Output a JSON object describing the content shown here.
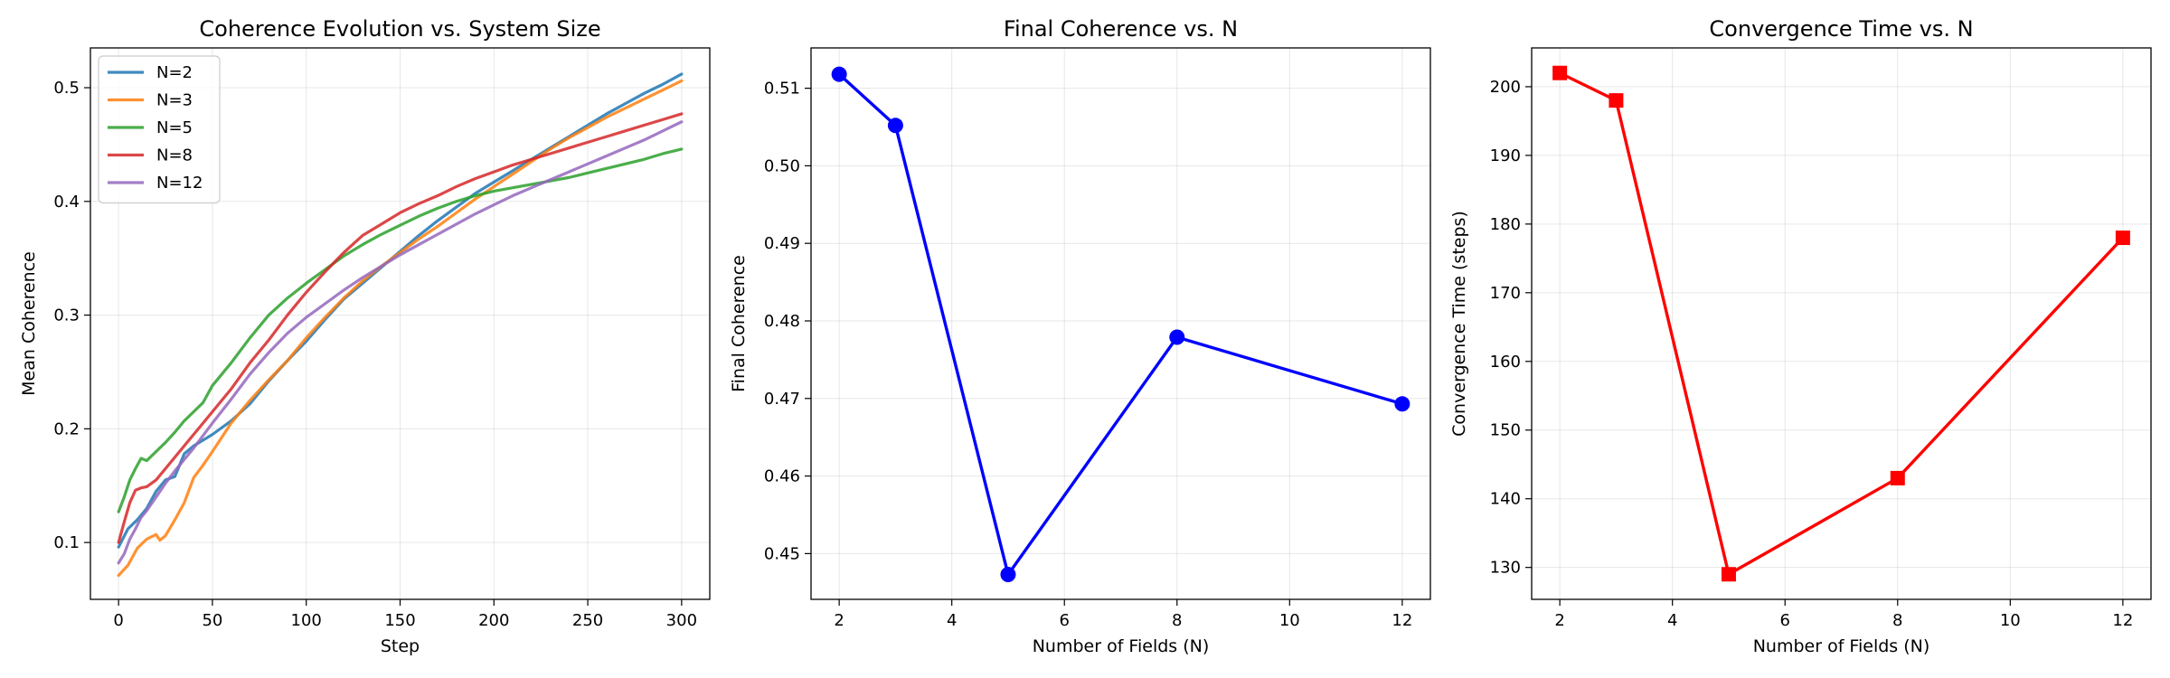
{
  "chart_data": [
    {
      "type": "line",
      "title": "Coherence Evolution vs. System Size",
      "xlabel": "Step",
      "ylabel": "Mean Coherence",
      "xlim": [
        -15,
        315
      ],
      "ylim": [
        0.05,
        0.535
      ],
      "xticks": [
        0,
        50,
        100,
        150,
        200,
        250,
        300
      ],
      "yticks": [
        0.1,
        0.2,
        0.3,
        0.4,
        0.5
      ],
      "grid": true,
      "legend": "upper left",
      "series": [
        {
          "name": "N=2",
          "color": "#1f77b4",
          "x": [
            0,
            5,
            10,
            15,
            20,
            25,
            30,
            35,
            40,
            50,
            60,
            70,
            80,
            90,
            100,
            110,
            120,
            130,
            140,
            150,
            160,
            170,
            180,
            190,
            200,
            210,
            220,
            230,
            240,
            250,
            260,
            270,
            280,
            290,
            300
          ],
          "y": [
            0.096,
            0.112,
            0.12,
            0.13,
            0.145,
            0.155,
            0.158,
            0.178,
            0.185,
            0.195,
            0.207,
            0.222,
            0.242,
            0.26,
            0.277,
            0.296,
            0.314,
            0.328,
            0.342,
            0.356,
            0.37,
            0.383,
            0.395,
            0.407,
            0.417,
            0.427,
            0.437,
            0.447,
            0.457,
            0.467,
            0.477,
            0.486,
            0.495,
            0.503,
            0.512
          ]
        },
        {
          "name": "N=3",
          "color": "#ff7f0e",
          "x": [
            0,
            5,
            10,
            15,
            20,
            22,
            25,
            30,
            35,
            40,
            45,
            50,
            60,
            70,
            80,
            90,
            100,
            110,
            120,
            130,
            140,
            150,
            160,
            170,
            180,
            190,
            200,
            210,
            220,
            230,
            240,
            250,
            260,
            270,
            280,
            290,
            300
          ],
          "y": [
            0.071,
            0.08,
            0.095,
            0.103,
            0.107,
            0.102,
            0.106,
            0.12,
            0.135,
            0.157,
            0.168,
            0.18,
            0.205,
            0.225,
            0.243,
            0.26,
            0.28,
            0.298,
            0.315,
            0.33,
            0.343,
            0.355,
            0.367,
            0.378,
            0.39,
            0.402,
            0.413,
            0.424,
            0.435,
            0.446,
            0.456,
            0.465,
            0.474,
            0.482,
            0.49,
            0.498,
            0.506
          ]
        },
        {
          "name": "N=5",
          "color": "#2ca02c",
          "x": [
            0,
            3,
            6,
            9,
            12,
            15,
            20,
            25,
            30,
            35,
            40,
            45,
            50,
            60,
            70,
            80,
            90,
            100,
            110,
            120,
            130,
            140,
            150,
            160,
            170,
            180,
            190,
            200,
            210,
            220,
            230,
            240,
            250,
            260,
            270,
            280,
            290,
            300
          ],
          "y": [
            0.127,
            0.14,
            0.155,
            0.165,
            0.174,
            0.172,
            0.18,
            0.188,
            0.197,
            0.207,
            0.215,
            0.223,
            0.238,
            0.258,
            0.28,
            0.3,
            0.315,
            0.328,
            0.34,
            0.352,
            0.362,
            0.371,
            0.379,
            0.387,
            0.394,
            0.4,
            0.405,
            0.409,
            0.412,
            0.415,
            0.418,
            0.421,
            0.425,
            0.429,
            0.433,
            0.437,
            0.442,
            0.446
          ]
        },
        {
          "name": "N=8",
          "color": "#d62728",
          "x": [
            0,
            3,
            6,
            9,
            12,
            15,
            20,
            25,
            30,
            40,
            50,
            60,
            70,
            80,
            90,
            100,
            110,
            120,
            130,
            140,
            150,
            160,
            170,
            180,
            190,
            200,
            210,
            220,
            230,
            240,
            250,
            260,
            270,
            280,
            290,
            300
          ],
          "y": [
            0.1,
            0.118,
            0.135,
            0.146,
            0.148,
            0.149,
            0.155,
            0.165,
            0.175,
            0.195,
            0.215,
            0.235,
            0.258,
            0.278,
            0.3,
            0.32,
            0.338,
            0.355,
            0.37,
            0.38,
            0.39,
            0.398,
            0.405,
            0.413,
            0.42,
            0.426,
            0.432,
            0.437,
            0.442,
            0.447,
            0.452,
            0.457,
            0.462,
            0.467,
            0.472,
            0.477
          ]
        },
        {
          "name": "N=12",
          "color": "#9467bd",
          "x": [
            0,
            3,
            6,
            9,
            12,
            15,
            20,
            25,
            30,
            40,
            50,
            60,
            70,
            80,
            90,
            100,
            110,
            120,
            130,
            140,
            150,
            160,
            170,
            180,
            190,
            200,
            210,
            220,
            230,
            240,
            250,
            260,
            270,
            280,
            290,
            300
          ],
          "y": [
            0.082,
            0.09,
            0.103,
            0.112,
            0.122,
            0.128,
            0.14,
            0.152,
            0.163,
            0.183,
            0.205,
            0.226,
            0.248,
            0.267,
            0.284,
            0.298,
            0.31,
            0.322,
            0.333,
            0.343,
            0.353,
            0.362,
            0.371,
            0.38,
            0.389,
            0.397,
            0.405,
            0.412,
            0.419,
            0.426,
            0.433,
            0.44,
            0.447,
            0.454,
            0.462,
            0.47
          ]
        }
      ]
    },
    {
      "type": "line",
      "title": "Final Coherence vs. N",
      "xlabel": "Number of Fields (N)",
      "ylabel": "Final Coherence",
      "xlim": [
        1.5,
        12.5
      ],
      "ylim": [
        0.4441,
        0.5152
      ],
      "xticks": [
        2,
        4,
        6,
        8,
        10,
        12
      ],
      "yticks": [
        0.45,
        0.46,
        0.47,
        0.48,
        0.49,
        0.5,
        0.51
      ],
      "grid": true,
      "marker": "circle",
      "series": [
        {
          "color": "#0000ff",
          "x": [
            2,
            3,
            5,
            8,
            12
          ],
          "y": [
            0.5118,
            0.5052,
            0.4473,
            0.4779,
            0.4693
          ]
        }
      ]
    },
    {
      "type": "line",
      "title": "Convergence Time vs. N",
      "xlabel": "Number of Fields (N)",
      "ylabel": "Convergence Time (steps)",
      "xlim": [
        1.5,
        12.5
      ],
      "ylim": [
        125.35,
        205.65
      ],
      "xticks": [
        2,
        4,
        6,
        8,
        10,
        12
      ],
      "yticks": [
        130,
        140,
        150,
        160,
        170,
        180,
        190,
        200
      ],
      "grid": true,
      "marker": "square",
      "series": [
        {
          "color": "#ff0000",
          "x": [
            2,
            3,
            5,
            8,
            12
          ],
          "y": [
            202,
            198,
            129,
            143,
            178
          ]
        }
      ]
    }
  ]
}
